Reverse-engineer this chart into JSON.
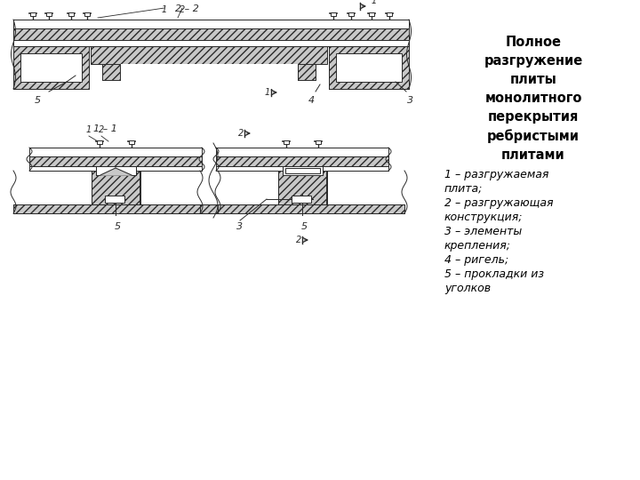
{
  "title_text": "Полное\nразгружение\nплиты\nмонолитного\nперекрытия\nребристыми\nплитами",
  "legend_lines": [
    "1 – разгружаемая",
    "плита;",
    "2 – разгружающая",
    "конструкция;",
    "3 – элементы",
    "крепления;",
    "4 – ригель;",
    "5 – прокладки из",
    "уголков"
  ],
  "lc": "#2a2a2a",
  "hc": "#c8c8c8"
}
